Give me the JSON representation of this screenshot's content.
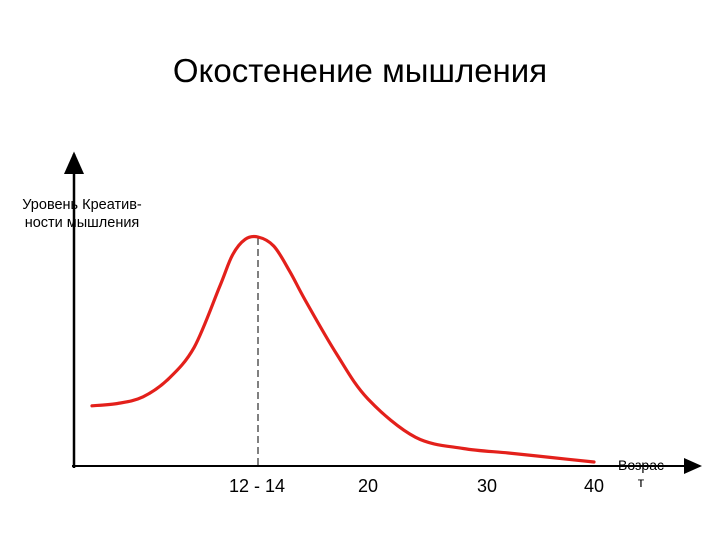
{
  "title": "Окостенение мышления",
  "chart_data": {
    "type": "line",
    "ylabel_lines": [
      "Уровень Креатив-",
      "ности мышления"
    ],
    "xlabel_lines": [
      "Возрас",
      "т"
    ],
    "x_ticks": [
      "12 - 14",
      "20",
      "30",
      "40"
    ],
    "peak_tick": "12 - 14",
    "series": [
      {
        "x": [
          0,
          2,
          4,
          6,
          8,
          10,
          11,
          12,
          13,
          14,
          15,
          16,
          18,
          20,
          24,
          28,
          32,
          36,
          40
        ],
        "values": [
          0.25,
          0.26,
          0.29,
          0.37,
          0.51,
          0.78,
          0.92,
          0.99,
          1.0,
          0.96,
          0.85,
          0.72,
          0.48,
          0.28,
          0.11,
          0.06,
          0.04,
          0.02,
          0.0
        ]
      }
    ],
    "line_color": "#e3201b",
    "axis_color": "#000000",
    "grid": false
  }
}
